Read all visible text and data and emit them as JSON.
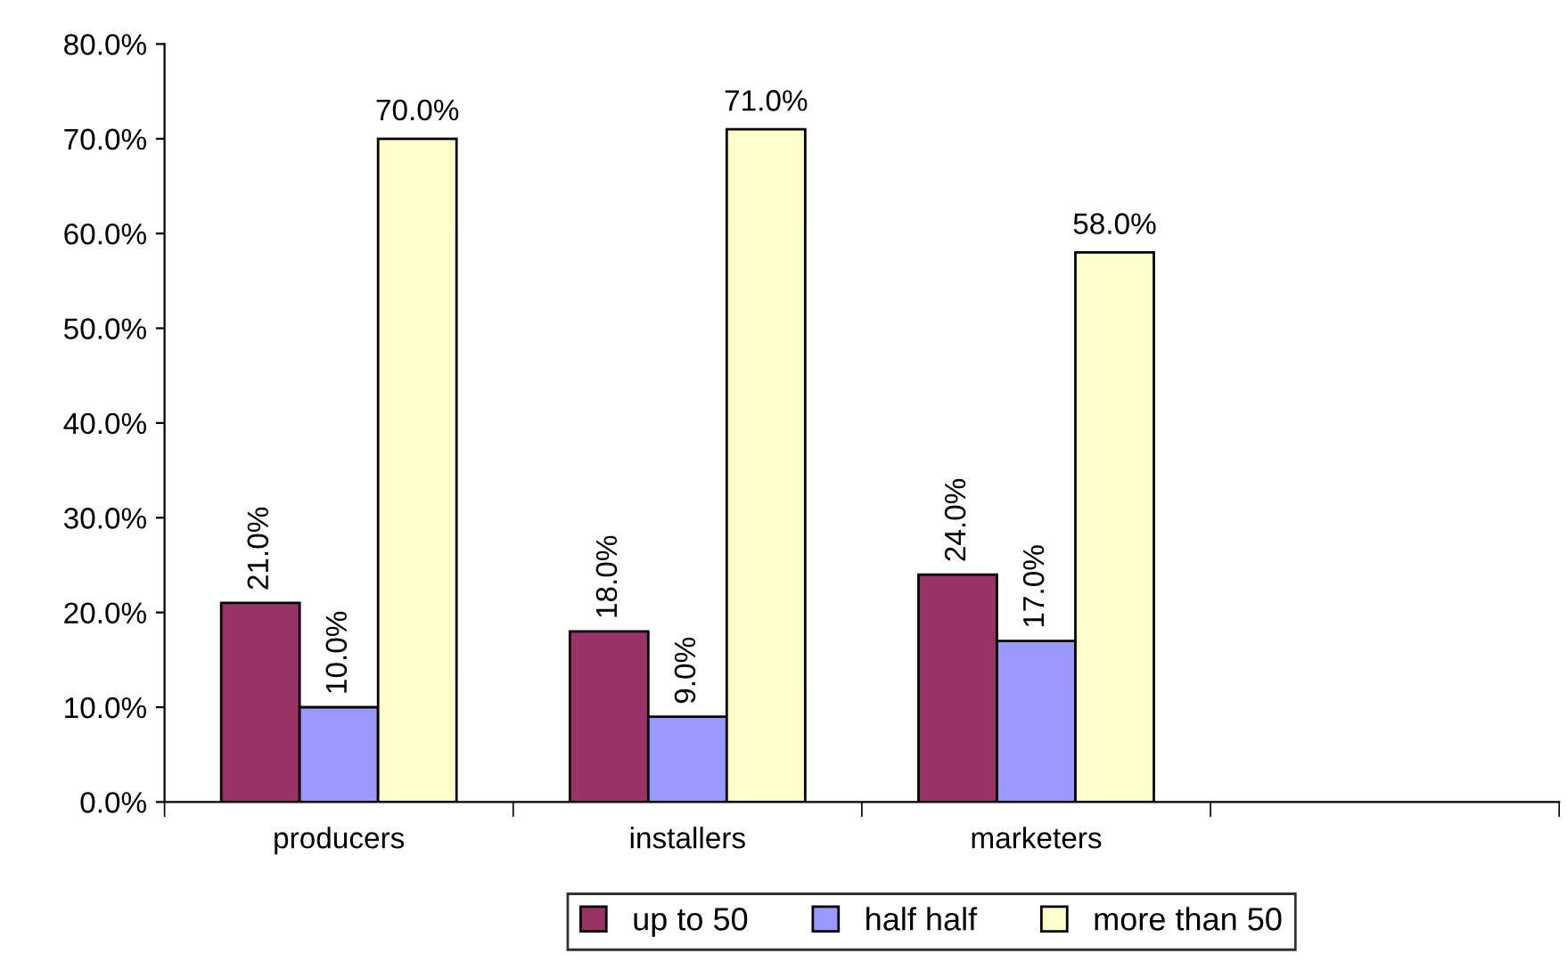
{
  "chart_data": {
    "type": "bar",
    "categories": [
      "producers",
      "installers",
      "marketers",
      null
    ],
    "series": [
      {
        "name": "up to 50",
        "color": "#993366",
        "values": [
          21.0,
          18.0,
          24.0,
          null
        ],
        "value_labels": [
          "21.0%",
          "18.0%",
          "24.0%",
          null
        ]
      },
      {
        "name": "half half",
        "color": "#9999ff",
        "values": [
          10.0,
          9.0,
          17.0,
          null
        ],
        "value_labels": [
          "10.0%",
          "9.0%",
          "17.0%",
          null
        ]
      },
      {
        "name": "more than 50",
        "color": "#ffffcc",
        "values": [
          70.0,
          71.0,
          58.0,
          null
        ],
        "value_labels": [
          "70.0%",
          "71.0%",
          "58.0%",
          null
        ]
      }
    ],
    "ylim": [
      0,
      80
    ],
    "yticks": [
      {
        "value": 0,
        "label": "0.0%"
      },
      {
        "value": 10,
        "label": "10.0%"
      },
      {
        "value": 20,
        "label": "20.0%"
      },
      {
        "value": 30,
        "label": "30.0%"
      },
      {
        "value": 40,
        "label": "40.0%"
      },
      {
        "value": 50,
        "label": "50.0%"
      },
      {
        "value": 60,
        "label": "60.0%"
      },
      {
        "value": 70,
        "label": "70.0%"
      },
      {
        "value": 80,
        "label": "80.0%"
      }
    ],
    "grid": false,
    "legend": "bottom"
  }
}
